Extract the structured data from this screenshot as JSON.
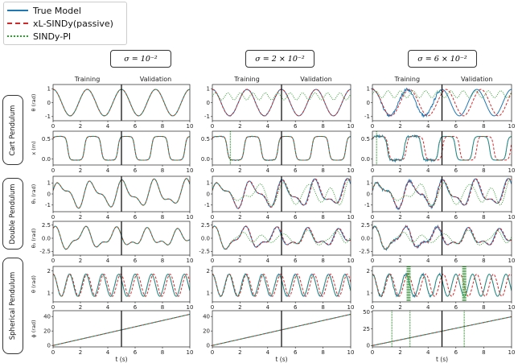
{
  "legend": {
    "items": [
      {
        "label": "True Model",
        "color": "#1f77b4",
        "style": "solid"
      },
      {
        "label": "xL-SINDy(passive)",
        "color": "#d62728",
        "style": "dashed"
      },
      {
        "label": "SINDy-PI",
        "color": "#2ca02c",
        "style": "dotted"
      }
    ]
  },
  "columns": [
    {
      "sigma_label": "σ = 10⁻²"
    },
    {
      "sigma_label": "σ = 2 × 10⁻²"
    },
    {
      "sigma_label": "σ = 6 × 10⁻²"
    }
  ],
  "rows": [
    {
      "group": "Cart Pendulum",
      "ylabel": "θ (rad)"
    },
    {
      "group": "Cart Pendulum",
      "ylabel": "x (m)"
    },
    {
      "group": "Double Pendulum",
      "ylabel": "θ₁ (rad)"
    },
    {
      "group": "Double Pendulum",
      "ylabel": "θ₂ (rad)"
    },
    {
      "group": "Spherical Pendulum",
      "ylabel": "θ (rad)"
    },
    {
      "group": "Spherical Pendulum",
      "ylabel": "ϕ (rad)"
    }
  ],
  "groups": [
    "Cart Pendulum",
    "Double Pendulum",
    "Spherical Pendulum"
  ],
  "phase_labels": {
    "training": "Training",
    "validation": "Validation"
  },
  "xlabel": "t (s)",
  "chart_data": {
    "type": "line",
    "x_range": [
      0,
      10
    ],
    "x_ticks": [
      0,
      2,
      4,
      6,
      8,
      10
    ],
    "training_validation_split": 5,
    "series_names": [
      "True Model",
      "xL-SINDy(passive)",
      "SINDy-PI"
    ],
    "panels": [
      {
        "row": 0,
        "col": 0,
        "ylim": [
          -1.3,
          1.3
        ],
        "yticks": [
          -1,
          0,
          1
        ],
        "ytick_labels": [
          "-1",
          "0",
          "1"
        ],
        "truth": "cart_theta",
        "xl_error": 0.0,
        "pi": "match",
        "noise": 0.01
      },
      {
        "row": 0,
        "col": 1,
        "ylim": [
          -1.3,
          1.3
        ],
        "yticks": [
          -1,
          0,
          1
        ],
        "ytick_labels": [
          "-1",
          "0",
          "1"
        ],
        "truth": "cart_theta",
        "xl_error": 0.0,
        "pi": "small_osc_0.45",
        "noise": 0.02
      },
      {
        "row": 0,
        "col": 2,
        "ylim": [
          -1.3,
          1.3
        ],
        "yticks": [
          -1,
          0,
          1
        ],
        "ytick_labels": [
          "-1",
          "0",
          "1"
        ],
        "truth": "cart_theta",
        "xl_error": 0.3,
        "pi": "small_osc_0.6",
        "noise": 0.06
      },
      {
        "row": 1,
        "col": 0,
        "ylim": [
          -0.15,
          0.7
        ],
        "yticks": [
          0.0,
          0.5
        ],
        "ytick_labels": [
          "0.0",
          "0.5"
        ],
        "truth": "cart_x",
        "xl_error": 0.0,
        "pi": "match",
        "noise": 0.01
      },
      {
        "row": 1,
        "col": 1,
        "ylim": [
          -0.15,
          0.7
        ],
        "yticks": [
          0.0,
          0.5
        ],
        "ytick_labels": [
          "0.0",
          "0.5"
        ],
        "truth": "cart_x",
        "xl_error": 0.0,
        "pi": "spike_1.3",
        "noise": 0.02
      },
      {
        "row": 1,
        "col": 2,
        "ylim": [
          -0.15,
          0.7
        ],
        "yticks": [
          0.0,
          0.5
        ],
        "ytick_labels": [
          "0.0",
          "0.5"
        ],
        "truth": "cart_x",
        "xl_error": 0.3,
        "pi": "spike_0.3",
        "noise": 0.06
      },
      {
        "row": 2,
        "col": 0,
        "ylim": [
          -1.6,
          1.6
        ],
        "yticks": [
          -1,
          0,
          1
        ],
        "ytick_labels": [
          "-1",
          "0",
          "1"
        ],
        "truth": "dp_theta1",
        "xl_error": 0.0,
        "pi": "match",
        "noise": 0.01
      },
      {
        "row": 2,
        "col": 1,
        "ylim": [
          -1.6,
          1.6
        ],
        "yticks": [
          -1,
          0,
          1
        ],
        "ytick_labels": [
          "-1",
          "0",
          "1"
        ],
        "truth": "dp_theta1",
        "xl_error": 0.05,
        "pi": "diverge",
        "noise": 0.02
      },
      {
        "row": 2,
        "col": 2,
        "ylim": [
          -1.6,
          1.6
        ],
        "yticks": [
          -1,
          0,
          1
        ],
        "ytick_labels": [
          "-1",
          "0",
          "1"
        ],
        "truth": "dp_theta1",
        "xl_error": 0.05,
        "pi": "diverge",
        "noise": 0.06
      },
      {
        "row": 3,
        "col": 0,
        "ylim": [
          -3.2,
          3.2
        ],
        "yticks": [
          -2.5,
          0.0,
          2.5
        ],
        "ytick_labels": [
          "-2.5",
          "0.0",
          "2.5"
        ],
        "truth": "dp_theta2",
        "xl_error": 0.0,
        "pi": "match",
        "noise": 0.01
      },
      {
        "row": 3,
        "col": 1,
        "ylim": [
          -3.2,
          3.2
        ],
        "yticks": [
          -2.5,
          0.0,
          2.5
        ],
        "ytick_labels": [
          "-2.5",
          "0.0",
          "2.5"
        ],
        "truth": "dp_theta2",
        "xl_error": 0.05,
        "pi": "diverge",
        "noise": 0.02
      },
      {
        "row": 3,
        "col": 2,
        "ylim": [
          -3.2,
          3.2
        ],
        "yticks": [
          -2.5,
          0.0,
          2.5
        ],
        "ytick_labels": [
          "-2.5",
          "0.0",
          "2.5"
        ],
        "truth": "dp_theta2",
        "xl_error": 0.05,
        "pi": "diverge",
        "noise": 0.06
      },
      {
        "row": 4,
        "col": 0,
        "ylim": [
          0.6,
          2.2
        ],
        "yticks": [
          1,
          2
        ],
        "ytick_labels": [
          "1",
          "2"
        ],
        "truth": "sp_theta",
        "xl_error": 0.15,
        "pi": "match",
        "noise": 0.01
      },
      {
        "row": 4,
        "col": 1,
        "ylim": [
          0.6,
          2.2
        ],
        "yticks": [
          1,
          2
        ],
        "ytick_labels": [
          "1",
          "2"
        ],
        "truth": "sp_theta",
        "xl_error": 0.15,
        "pi": "near",
        "noise": 0.02
      },
      {
        "row": 4,
        "col": 2,
        "ylim": [
          0.6,
          2.2
        ],
        "yticks": [
          1,
          2
        ],
        "ytick_labels": [
          "1",
          "2"
        ],
        "truth": "sp_theta",
        "xl_error": 0.3,
        "pi": "spikes_2.6_6.6",
        "noise": 0.06
      },
      {
        "row": 5,
        "col": 0,
        "ylim": [
          -2,
          48
        ],
        "yticks": [
          0,
          20,
          40
        ],
        "ytick_labels": [
          "0",
          "20",
          "40"
        ],
        "truth": "sp_phi",
        "xl_error": 0.0,
        "pi": "match",
        "noise": 0.01
      },
      {
        "row": 5,
        "col": 1,
        "ylim": [
          -2,
          48
        ],
        "yticks": [
          0,
          20,
          40
        ],
        "ytick_labels": [
          "0",
          "20",
          "40"
        ],
        "truth": "sp_phi",
        "xl_error": 0.0,
        "pi": "match",
        "noise": 0.02
      },
      {
        "row": 5,
        "col": 2,
        "ylim": [
          -2,
          52
        ],
        "yticks": [
          0,
          25,
          50
        ],
        "ytick_labels": [
          "0",
          "25",
          "50"
        ],
        "truth": "sp_phi",
        "xl_error": 0.0,
        "pi": "verticals_1.4_2.7_6.6",
        "noise": 0.06
      }
    ]
  }
}
